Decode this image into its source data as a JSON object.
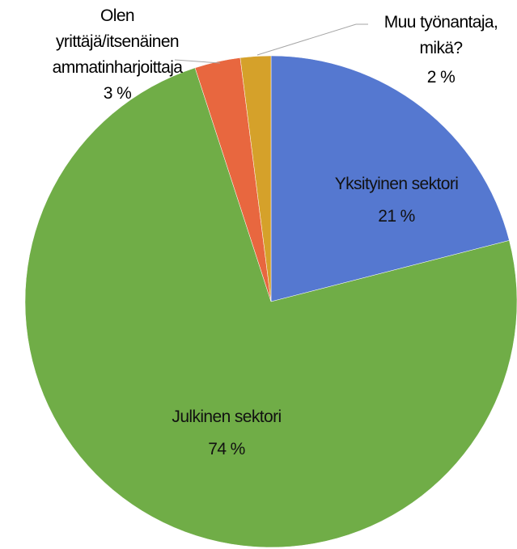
{
  "chart_data": {
    "type": "pie",
    "categories": [
      "Yksityinen sektori",
      "Julkinen sektori",
      "Olen yrittäjä/itsenäinen ammatinharjoittaja",
      "Muu työnantaja, mikä?"
    ],
    "values": [
      21,
      74,
      3,
      2
    ],
    "value_labels": [
      "21 %",
      "74 %",
      "3 %",
      "2 %"
    ],
    "colors": [
      "#5578d0",
      "#70ad47",
      "#e8673f",
      "#d5a12a"
    ]
  }
}
